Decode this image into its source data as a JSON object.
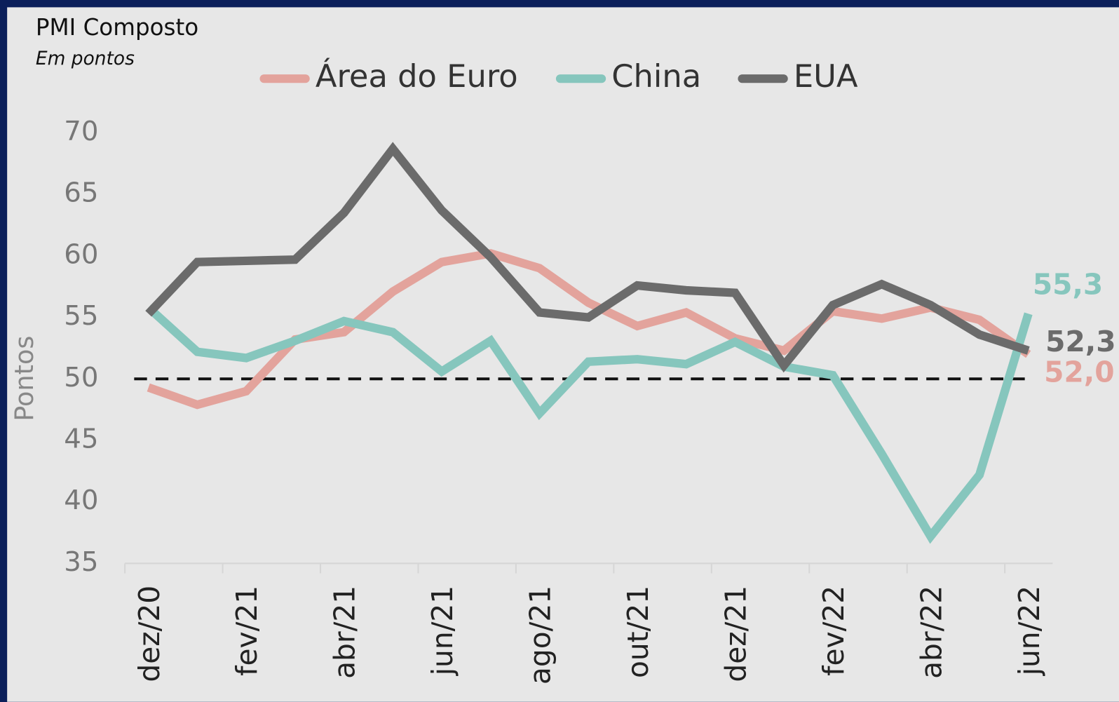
{
  "chart_data": {
    "type": "line",
    "title": "PMI Composto",
    "subtitle": "Em pontos",
    "ylabel": "Pontos",
    "categories": [
      "dez/20",
      null,
      "fev/21",
      null,
      "abr/21",
      null,
      "jun/21",
      null,
      "ago/21",
      null,
      "out/21",
      null,
      "dez/21",
      null,
      "fev/22",
      null,
      "abr/22",
      null,
      "jun/22"
    ],
    "series": [
      {
        "name": "Área do Euro",
        "color": "#e3a39c",
        "values": [
          49.3,
          47.9,
          49.0,
          53.2,
          53.8,
          57.1,
          59.5,
          60.2,
          59.0,
          56.2,
          54.3,
          55.4,
          53.3,
          52.3,
          55.5,
          54.9,
          55.8,
          54.8,
          52.0
        ],
        "value_labels": [
          null,
          null,
          null,
          null,
          null,
          null,
          null,
          null,
          null,
          null,
          null,
          null,
          null,
          null,
          null,
          null,
          null,
          null,
          "52,0"
        ]
      },
      {
        "name": "China",
        "color": "#86c6bd",
        "values": [
          55.8,
          52.2,
          51.7,
          53.1,
          54.7,
          53.8,
          50.6,
          53.1,
          47.2,
          51.4,
          51.6,
          51.2,
          53.0,
          51.0,
          50.3,
          43.9,
          37.2,
          42.2,
          55.3
        ],
        "value_labels": [
          null,
          null,
          null,
          null,
          null,
          null,
          null,
          null,
          null,
          null,
          null,
          null,
          null,
          null,
          null,
          null,
          null,
          null,
          "55,3"
        ]
      },
      {
        "name": "EUA",
        "color": "#6b6b6b",
        "values": [
          55.3,
          59.5,
          59.6,
          59.7,
          63.5,
          68.7,
          63.7,
          59.9,
          55.4,
          55.0,
          57.6,
          57.2,
          57.0,
          51.1,
          56.0,
          57.7,
          56.0,
          53.6,
          52.3
        ],
        "value_labels": [
          null,
          null,
          null,
          null,
          null,
          null,
          null,
          null,
          null,
          null,
          null,
          null,
          null,
          null,
          null,
          null,
          null,
          null,
          "52,3"
        ]
      }
    ],
    "ylim": [
      35,
      70
    ],
    "yticks": [
      35,
      40,
      45,
      50,
      55,
      60,
      65,
      70
    ],
    "reference_line": 50,
    "legend": "top"
  }
}
